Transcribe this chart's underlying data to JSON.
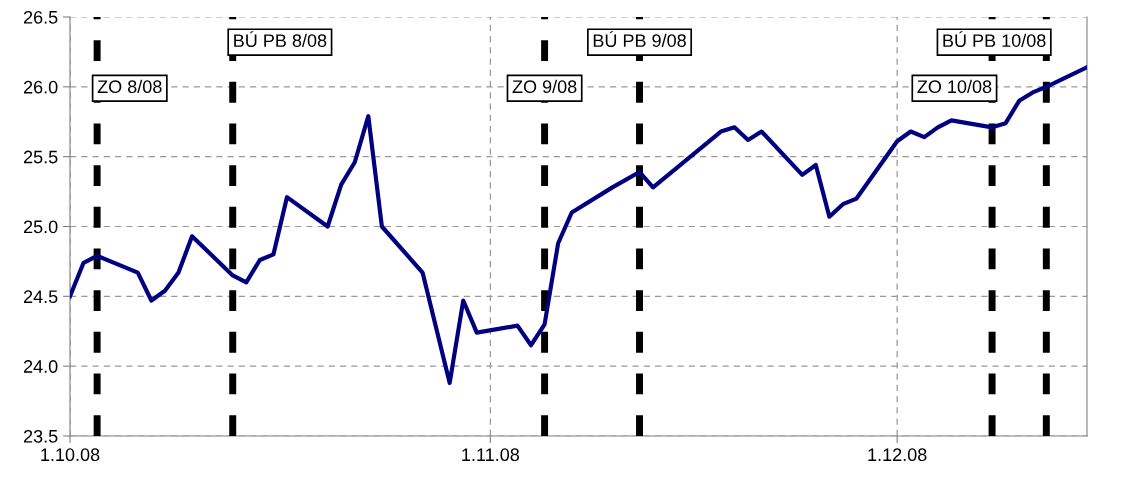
{
  "chart_data": {
    "type": "line",
    "x": [
      "2008-10-01",
      "2008-10-02",
      "2008-10-03",
      "2008-10-06",
      "2008-10-07",
      "2008-10-08",
      "2008-10-09",
      "2008-10-10",
      "2008-10-13",
      "2008-10-14",
      "2008-10-15",
      "2008-10-16",
      "2008-10-17",
      "2008-10-20",
      "2008-10-21",
      "2008-10-22",
      "2008-10-23",
      "2008-10-24",
      "2008-10-27",
      "2008-10-29",
      "2008-10-30",
      "2008-10-31",
      "2008-11-03",
      "2008-11-04",
      "2008-11-05",
      "2008-11-06",
      "2008-11-07",
      "2008-11-10",
      "2008-11-12",
      "2008-11-13",
      "2008-11-18",
      "2008-11-19",
      "2008-11-20",
      "2008-11-21",
      "2008-11-24",
      "2008-11-25",
      "2008-11-26",
      "2008-11-27",
      "2008-11-28",
      "2008-12-01",
      "2008-12-02",
      "2008-12-03",
      "2008-12-04",
      "2008-12-05",
      "2008-12-08",
      "2008-12-09",
      "2008-12-10",
      "2008-12-11",
      "2008-12-12",
      "2008-12-15"
    ],
    "series": [
      {
        "color": "#000080",
        "values": [
          24.5,
          24.74,
          24.79,
          24.67,
          24.47,
          24.54,
          24.67,
          24.93,
          24.65,
          24.6,
          24.76,
          24.8,
          25.21,
          25.0,
          25.3,
          25.46,
          25.79,
          25.0,
          24.67,
          23.88,
          24.47,
          24.24,
          24.29,
          24.15,
          24.3,
          24.88,
          25.1,
          25.28,
          25.39,
          25.28,
          25.68,
          25.71,
          25.62,
          25.68,
          25.37,
          25.44,
          25.07,
          25.16,
          25.2,
          25.61,
          25.68,
          25.64,
          25.71,
          25.76,
          25.71,
          25.74,
          25.9,
          25.96,
          26.0,
          26.14
        ]
      }
    ],
    "xlim": [
      "2008-10-01",
      "2008-12-15"
    ],
    "xticks": [
      {
        "value": "2008-10-01",
        "label": "1.10.08"
      },
      {
        "value": "2008-11-01",
        "label": "1.11.08"
      },
      {
        "value": "2008-12-01",
        "label": "1.12.08"
      }
    ],
    "ylim": [
      23.5,
      26.5
    ],
    "yticks": [
      {
        "value": 23.5,
        "label": "23.5"
      },
      {
        "value": 24.0,
        "label": "24.0"
      },
      {
        "value": 24.5,
        "label": "24.5"
      },
      {
        "value": 25.0,
        "label": "25.0"
      },
      {
        "value": 25.5,
        "label": "25.5"
      },
      {
        "value": 26.0,
        "label": "26.0"
      },
      {
        "value": 26.5,
        "label": "26.5"
      }
    ],
    "grid": true,
    "line_style": "solid",
    "ref_lines": [
      {
        "axis": "x",
        "value": "2008-10-03",
        "label": "ZO 8/08",
        "color": "#000000",
        "line_style": "dashed"
      },
      {
        "axis": "x",
        "value": "2008-10-13",
        "label": "BÚ PB 8/08",
        "color": "#000000",
        "line_style": "dashed"
      },
      {
        "axis": "x",
        "value": "2008-11-05",
        "label": "ZO 9/08",
        "color": "#000000",
        "line_style": "dashed"
      },
      {
        "axis": "x",
        "value": "2008-11-12",
        "label": "BÚ PB 9/08",
        "color": "#000000",
        "line_style": "dashed"
      },
      {
        "axis": "x",
        "value": "2008-12-08",
        "label": "ZO 10/08",
        "color": "#000000",
        "line_style": "dashed"
      },
      {
        "axis": "x",
        "value": "2008-12-12",
        "label": "BÚ PB 10/08",
        "color": "#000000",
        "line_style": "dashed"
      }
    ]
  }
}
